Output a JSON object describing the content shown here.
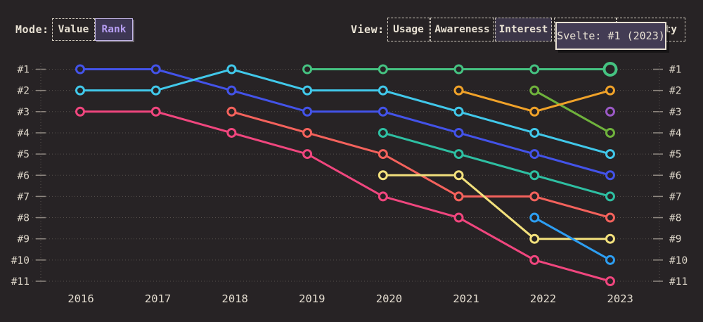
{
  "controls": {
    "mode": {
      "label": "Mode:",
      "options": [
        {
          "label": "Value",
          "selected": false
        },
        {
          "label": "Rank",
          "selected": true
        }
      ]
    },
    "view": {
      "label": "View:",
      "options": [
        {
          "label": "Usage",
          "selected": false
        },
        {
          "label": "Awareness",
          "selected": false
        },
        {
          "label": "Interest",
          "selected": true
        },
        {
          "label": "",
          "selected": false
        },
        {
          "label": "ty",
          "selected": false
        }
      ]
    }
  },
  "tooltip": {
    "text": "Svelte: #1 (2023)"
  },
  "palette": {
    "background": "#272325",
    "text_cream": "#e9e2d4",
    "selected_mode_text": "#b69df2",
    "selected_mode_bg": "#3e3754",
    "selected_view_bg": "#3b3548",
    "tooltip_bg": "#433c54",
    "grid": "#57514d"
  },
  "chart_data": {
    "type": "line",
    "variant": "rank-bump-chart",
    "title": "",
    "xlabel": "",
    "ylabel": "rank (#1 best at top, labels mirrored on both sides)",
    "x": [
      2016,
      2017,
      2018,
      2019,
      2020,
      2021,
      2022,
      2023
    ],
    "y_axis_tick_labels": [
      "#1",
      "#2",
      "#3",
      "#4",
      "#5",
      "#6",
      "#7",
      "#8",
      "#9",
      "#10",
      "#11"
    ],
    "ylim": [
      1,
      11
    ],
    "grid": "dotted horizontal line per rank, dotted vertical axis lines left and right",
    "legend": "none (series identified only by color; tooltip names green series Svelte)",
    "series": [
      {
        "name": "pink",
        "color": "#f0467e",
        "ranks": [
          3,
          3,
          4,
          5,
          7,
          8,
          10,
          11
        ]
      },
      {
        "name": "royal-blue",
        "color": "#4353e9",
        "ranks": [
          1,
          1,
          2,
          3,
          3,
          4,
          5,
          6
        ]
      },
      {
        "name": "cyan",
        "color": "#41c8ea",
        "ranks": [
          2,
          2,
          1,
          2,
          2,
          3,
          4,
          5
        ]
      },
      {
        "name": "salmon",
        "color": "#f4625c",
        "ranks": [
          null,
          null,
          3,
          4,
          5,
          7,
          7,
          8
        ]
      },
      {
        "name": "teal",
        "color": "#2ebfa2",
        "ranks": [
          null,
          null,
          null,
          null,
          4,
          5,
          6,
          7
        ]
      },
      {
        "name": "yellow",
        "color": "#f2e07c",
        "ranks": [
          null,
          null,
          null,
          null,
          6,
          6,
          9,
          9
        ]
      },
      {
        "name": "azure",
        "color": "#2d9ef2",
        "ranks": [
          null,
          null,
          null,
          null,
          null,
          null,
          8,
          10
        ]
      },
      {
        "name": "lime",
        "color": "#6fb23c",
        "ranks": [
          null,
          null,
          null,
          null,
          null,
          null,
          2,
          4
        ]
      },
      {
        "name": "purple",
        "color": "#9b59c6",
        "ranks": [
          null,
          null,
          null,
          null,
          null,
          null,
          null,
          3
        ]
      },
      {
        "name": "orange",
        "color": "#f0a229",
        "ranks": [
          null,
          null,
          null,
          null,
          null,
          2,
          3,
          2
        ]
      },
      {
        "name": "green",
        "color": "#45c281",
        "ranks": [
          null,
          null,
          null,
          1,
          1,
          1,
          1,
          1
        ]
      }
    ],
    "highlight_point": {
      "series": "green",
      "x": 2023,
      "rank": 1,
      "tooltip": "Svelte: #1 (2023)"
    }
  }
}
